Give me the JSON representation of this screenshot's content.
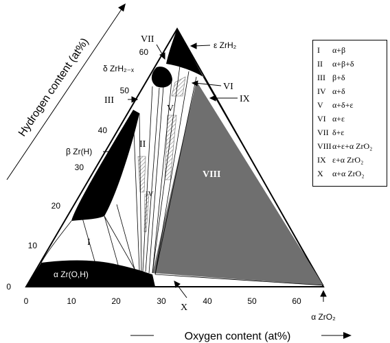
{
  "axes": {
    "x_label": "Oxygen content (at%)",
    "y_label": "Hydrogen content (at%)",
    "x_ticks": [
      "0",
      "10",
      "20",
      "30",
      "40",
      "50",
      "60"
    ],
    "y_ticks": [
      "0",
      "10",
      "20",
      "30",
      "40",
      "50",
      "60"
    ]
  },
  "phases": {
    "eps_zrh2": "ε ZrH₂",
    "delta_zrh2x": "δ ZrH₂₋ₓ",
    "beta_zrh": "β Zr(H)",
    "alpha_zroh": "α Zr(O,H)",
    "alpha_zro2": "α ZrO₂"
  },
  "region_labels": {
    "I": "I",
    "II": "II",
    "III": "III",
    "IV": "IV",
    "V": "V",
    "VI": "VI",
    "VII": "VII",
    "VIII": "VIII",
    "IX": "IX",
    "X": "X"
  },
  "legend": [
    {
      "num": "I",
      "text": "α+β"
    },
    {
      "num": "II",
      "text": "α+β+δ"
    },
    {
      "num": "III",
      "text": "β+δ"
    },
    {
      "num": "IV",
      "text": "α+δ"
    },
    {
      "num": "V",
      "text": "α+δ+ε"
    },
    {
      "num": "VI",
      "text": "α+ε"
    },
    {
      "num": "VII",
      "text": "δ+ε"
    },
    {
      "num": "VIII",
      "text": "α+ε+α ZrO₂"
    },
    {
      "num": "IX",
      "text": "ε+α ZrO₂"
    },
    {
      "num": "X",
      "text": "α+α ZrO₂"
    }
  ],
  "colors": {
    "ink": "#000000",
    "region_viii": "#6f6f6f",
    "hatch": "#9a9a9a"
  }
}
